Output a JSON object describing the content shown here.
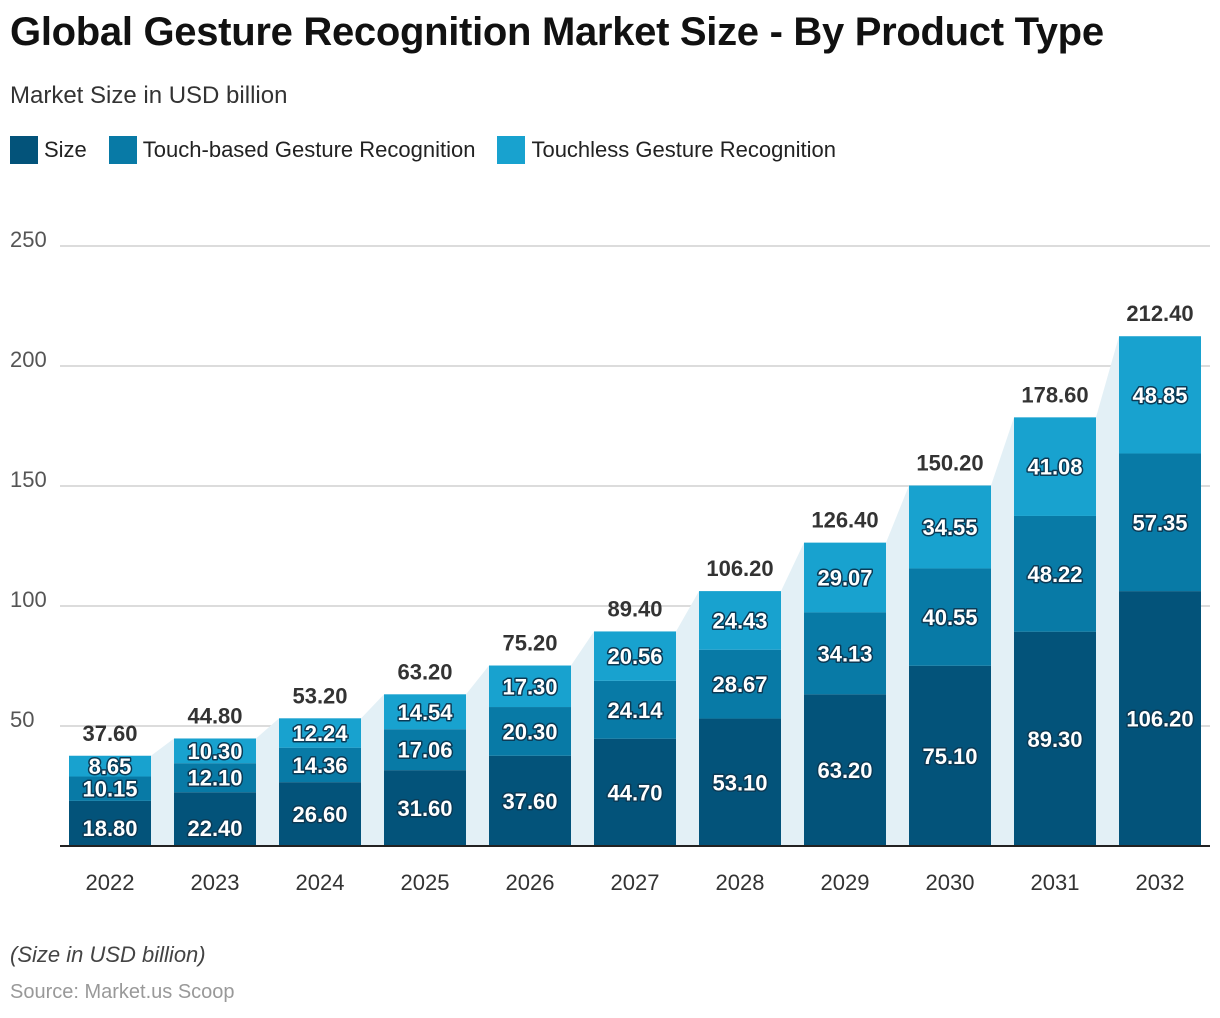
{
  "title": "Global Gesture Recognition Market Size - By Product Type",
  "subtitle": "Market Size in USD billion",
  "legend": [
    {
      "label": "Size",
      "color": "#03537a"
    },
    {
      "label": "Touch-based Gesture Recognition",
      "color": "#087aa6"
    },
    {
      "label": "Touchless Gesture Recognition",
      "color": "#18a2cf"
    }
  ],
  "note": "(Size in USD billion)",
  "source": "Source: Market.us Scoop",
  "chart_data": {
    "type": "bar",
    "stacked": true,
    "categories": [
      "2022",
      "2023",
      "2024",
      "2025",
      "2026",
      "2027",
      "2028",
      "2029",
      "2030",
      "2031",
      "2032"
    ],
    "series": [
      {
        "name": "Size",
        "color": "#03537a",
        "values": [
          18.8,
          22.4,
          26.6,
          31.6,
          37.6,
          44.7,
          53.1,
          63.2,
          75.1,
          89.3,
          106.2
        ]
      },
      {
        "name": "Touch-based Gesture Recognition",
        "color": "#087aa6",
        "values": [
          10.15,
          12.1,
          14.36,
          17.06,
          20.3,
          24.14,
          28.67,
          34.13,
          40.55,
          48.22,
          57.35
        ]
      },
      {
        "name": "Touchless Gesture Recognition",
        "color": "#18a2cf",
        "values": [
          8.65,
          10.3,
          12.24,
          14.54,
          17.3,
          20.56,
          24.43,
          29.07,
          34.55,
          41.08,
          48.85
        ]
      }
    ],
    "totals": [
      "37.60",
      "44.80",
      "53.20",
      "63.20",
      "75.20",
      "89.40",
      "106.20",
      "126.40",
      "150.20",
      "178.60",
      "212.40"
    ],
    "ylim": [
      0,
      250
    ],
    "yticks": [
      50,
      100,
      150,
      200,
      250
    ],
    "grid": true,
    "legend_position": "top-left"
  }
}
